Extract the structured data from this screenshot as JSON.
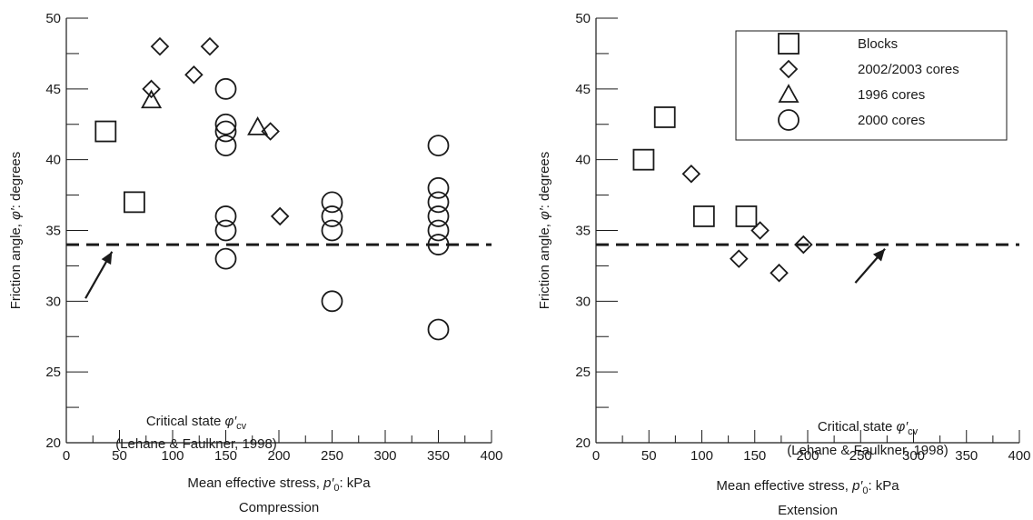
{
  "chart_data": [
    {
      "type": "scatter",
      "caption": "Compression",
      "xlabel": "Mean effective stress, p'0: kPa",
      "ylabel": "Friction angle, φ': degrees",
      "xlim": [
        0,
        400
      ],
      "ylim": [
        20,
        50
      ],
      "x_ticks": [
        0,
        50,
        100,
        150,
        200,
        250,
        300,
        350,
        400
      ],
      "y_ticks": [
        20,
        25,
        30,
        35,
        40,
        45,
        50
      ],
      "series": [
        {
          "name": "Blocks",
          "marker": "square",
          "points": [
            [
              37,
              42
            ],
            [
              64,
              37
            ]
          ]
        },
        {
          "name": "2002/2003 cores",
          "marker": "diamond",
          "points": [
            [
              80,
              45
            ],
            [
              88,
              48
            ],
            [
              120,
              46
            ],
            [
              135,
              48
            ],
            [
              192,
              42
            ],
            [
              201,
              36
            ]
          ]
        },
        {
          "name": "1996 cores",
          "marker": "triangle",
          "points": [
            [
              80,
              44.2
            ],
            [
              180,
              42.3
            ]
          ]
        },
        {
          "name": "2000 cores",
          "marker": "circle",
          "points": [
            [
              150,
              45
            ],
            [
              150,
              42.5
            ],
            [
              150,
              42
            ],
            [
              150,
              41
            ],
            [
              150,
              36
            ],
            [
              150,
              35
            ],
            [
              150,
              33
            ],
            [
              250,
              37
            ],
            [
              250,
              36
            ],
            [
              250,
              35
            ],
            [
              250,
              30
            ],
            [
              350,
              41
            ],
            [
              350,
              38
            ],
            [
              350,
              37
            ],
            [
              350,
              36
            ],
            [
              350,
              35
            ],
            [
              350,
              34
            ],
            [
              350,
              28
            ]
          ]
        }
      ],
      "reference_line": {
        "y": 34,
        "style": "dashed"
      },
      "annotation": {
        "line1": "Critical state φ'cv",
        "line2": "(Lehane & Faulkner, 1998)",
        "arrow_from": [
          18,
          30.2
        ],
        "arrow_to": [
          43,
          33.5
        ]
      },
      "legend": null
    },
    {
      "type": "scatter",
      "caption": "Extension",
      "xlabel": "Mean effective stress, p'0: kPa",
      "ylabel": "Friction angle, φ': degrees",
      "xlim": [
        0,
        400
      ],
      "ylim": [
        20,
        50
      ],
      "x_ticks": [
        0,
        50,
        100,
        150,
        200,
        250,
        300,
        350,
        400
      ],
      "y_ticks": [
        20,
        25,
        30,
        35,
        40,
        45,
        50
      ],
      "series": [
        {
          "name": "Blocks",
          "marker": "square",
          "points": [
            [
              45,
              40
            ],
            [
              65,
              43
            ],
            [
              102,
              36
            ],
            [
              142,
              36
            ]
          ]
        },
        {
          "name": "2002/2003 cores",
          "marker": "diamond",
          "points": [
            [
              90,
              39
            ],
            [
              135,
              33
            ],
            [
              155,
              35
            ],
            [
              173,
              32
            ],
            [
              196,
              34
            ]
          ]
        },
        {
          "name": "1996 cores",
          "marker": "triangle",
          "points": []
        },
        {
          "name": "2000 cores",
          "marker": "circle",
          "points": []
        }
      ],
      "reference_line": {
        "y": 34,
        "style": "dashed"
      },
      "annotation": {
        "line1": "Critical state φ'cv",
        "line2": "(Lehane & Faulkner, 1998)",
        "arrow_from": [
          245,
          31.3
        ],
        "arrow_to": [
          273,
          33.7
        ]
      },
      "legend": {
        "placement": "top-right",
        "entries": [
          "Blocks",
          "2002/2003 cores",
          "1996 cores",
          "2000 cores"
        ]
      }
    }
  ]
}
